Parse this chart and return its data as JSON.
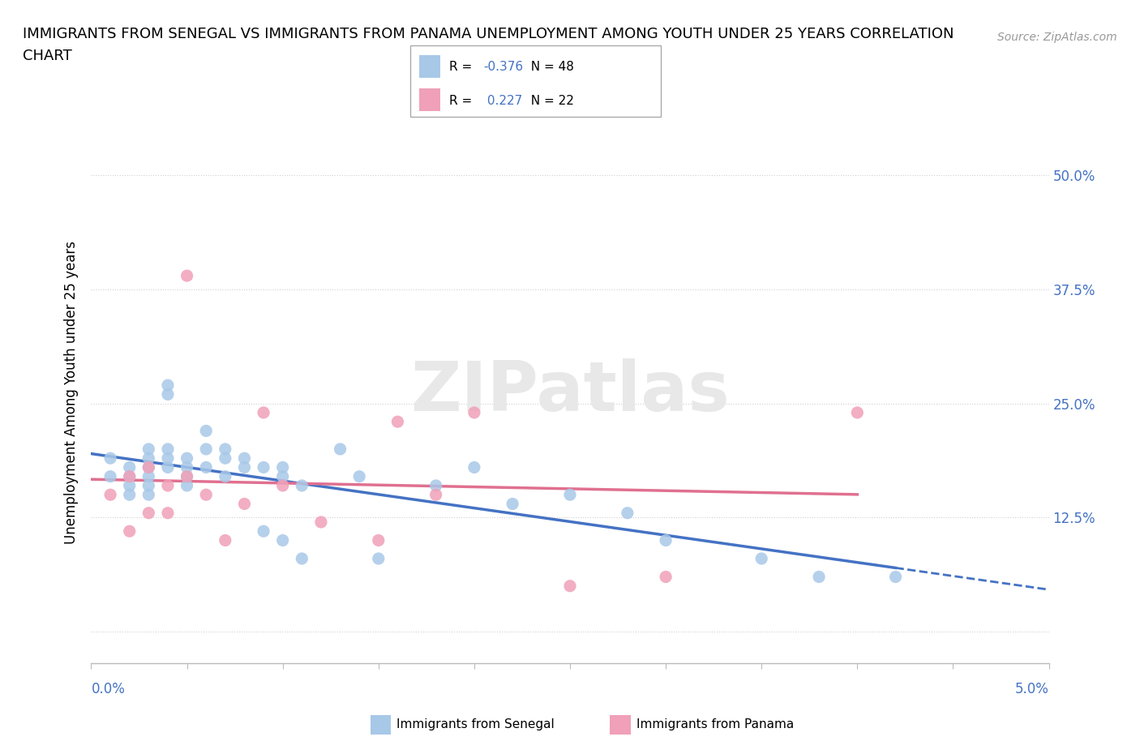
{
  "title_line1": "IMMIGRANTS FROM SENEGAL VS IMMIGRANTS FROM PANAMA UNEMPLOYMENT AMONG YOUTH UNDER 25 YEARS CORRELATION",
  "title_line2": "CHART",
  "source": "Source: ZipAtlas.com",
  "ylabel": "Unemployment Among Youth under 25 years",
  "xlim": [
    0.0,
    0.05
  ],
  "ylim": [
    -0.035,
    0.56
  ],
  "senegal_color": "#a8c8e8",
  "panama_color": "#f0a0b8",
  "senegal_line_color": "#4472c4",
  "panama_line_color": "#e07090",
  "dashed_line_color": "#4472c4",
  "tick_color": "#4472c4",
  "grid_color": "#d0d0d0",
  "title_fontsize": 13,
  "axis_label_fontsize": 12,
  "tick_fontsize": 12,
  "watermark": "ZIPatlas",
  "senegal_x": [
    0.001,
    0.001,
    0.002,
    0.002,
    0.002,
    0.002,
    0.003,
    0.003,
    0.003,
    0.003,
    0.003,
    0.003,
    0.004,
    0.004,
    0.004,
    0.004,
    0.004,
    0.005,
    0.005,
    0.005,
    0.005,
    0.006,
    0.006,
    0.006,
    0.007,
    0.007,
    0.007,
    0.008,
    0.008,
    0.009,
    0.009,
    0.01,
    0.01,
    0.01,
    0.011,
    0.011,
    0.013,
    0.014,
    0.015,
    0.018,
    0.02,
    0.022,
    0.025,
    0.028,
    0.03,
    0.035,
    0.038,
    0.042
  ],
  "senegal_y": [
    0.17,
    0.19,
    0.18,
    0.17,
    0.16,
    0.15,
    0.2,
    0.19,
    0.18,
    0.17,
    0.16,
    0.15,
    0.27,
    0.26,
    0.2,
    0.19,
    0.18,
    0.19,
    0.18,
    0.17,
    0.16,
    0.22,
    0.2,
    0.18,
    0.2,
    0.19,
    0.17,
    0.19,
    0.18,
    0.18,
    0.11,
    0.18,
    0.17,
    0.1,
    0.16,
    0.08,
    0.2,
    0.17,
    0.08,
    0.16,
    0.18,
    0.14,
    0.15,
    0.13,
    0.1,
    0.08,
    0.06,
    0.06
  ],
  "panama_x": [
    0.001,
    0.002,
    0.002,
    0.003,
    0.003,
    0.004,
    0.004,
    0.005,
    0.005,
    0.006,
    0.007,
    0.008,
    0.009,
    0.01,
    0.012,
    0.015,
    0.016,
    0.018,
    0.02,
    0.025,
    0.03,
    0.04
  ],
  "panama_y": [
    0.15,
    0.17,
    0.11,
    0.18,
    0.13,
    0.16,
    0.13,
    0.39,
    0.17,
    0.15,
    0.1,
    0.14,
    0.24,
    0.16,
    0.12,
    0.1,
    0.23,
    0.15,
    0.24,
    0.05,
    0.06,
    0.24
  ]
}
